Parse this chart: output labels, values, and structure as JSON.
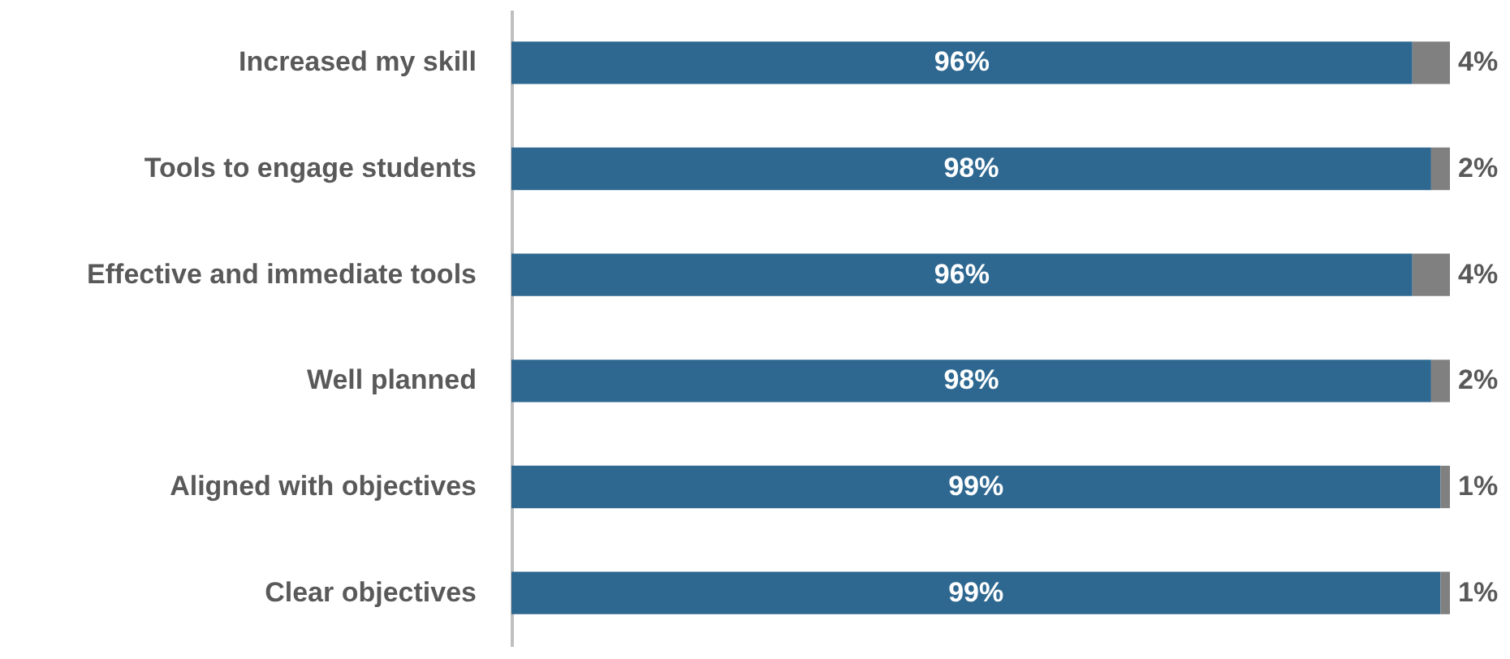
{
  "chart_data": {
    "type": "bar",
    "orientation": "horizontal",
    "stacked": true,
    "legend": false,
    "grid": false,
    "categories": [
      "Increased my skill",
      "Tools to engage students",
      "Effective and immediate tools",
      "Well planned",
      "Aligned with objectives",
      "Clear objectives"
    ],
    "series": [
      {
        "color": "#2e6891",
        "values": [
          96,
          98,
          96,
          98,
          99,
          99
        ],
        "value_labels": [
          "96%",
          "98%",
          "96%",
          "98%",
          "99%",
          "99%"
        ]
      },
      {
        "color": "#808080",
        "values": [
          4,
          2,
          4,
          2,
          1,
          1
        ],
        "value_labels": [
          "4%",
          "2%",
          "4%",
          "2%",
          "1%",
          "1%"
        ]
      }
    ]
  }
}
